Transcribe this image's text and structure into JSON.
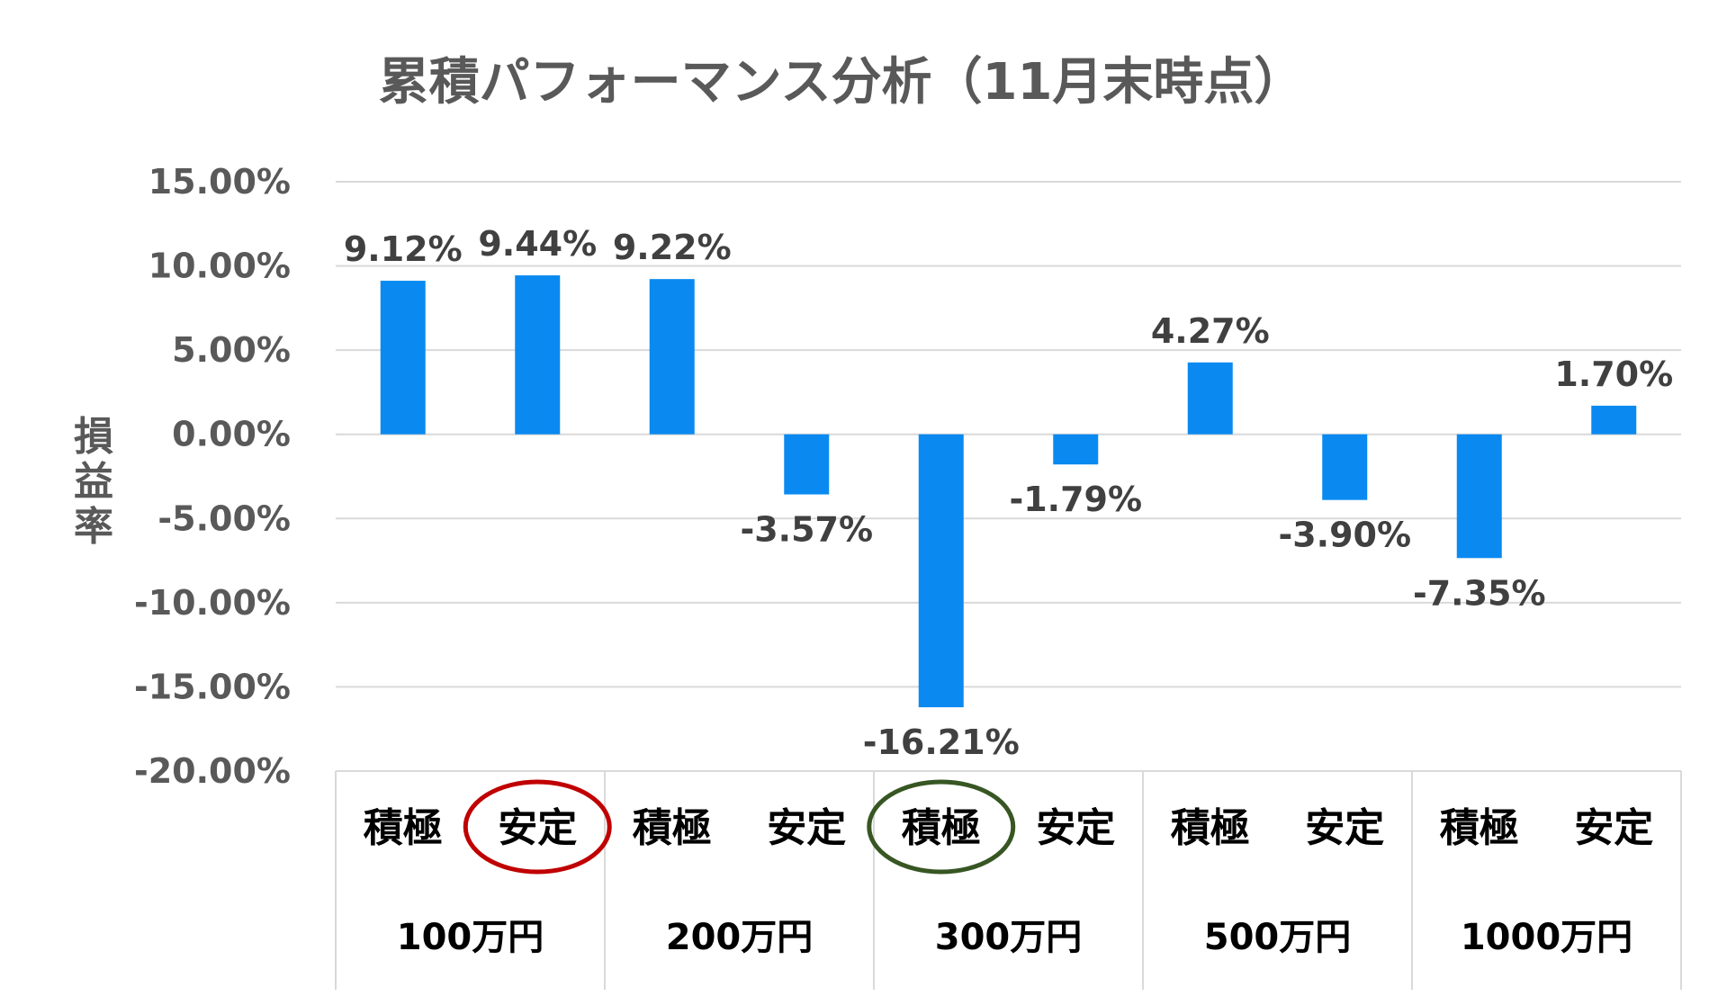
{
  "chart_data": {
    "type": "bar",
    "title": "累積パフォーマンス分析（11月末時点）",
    "ylabel": "損益率",
    "xlabel": "",
    "ylim": [
      -20,
      15
    ],
    "yticks": [
      15,
      10,
      5,
      0,
      -5,
      -10,
      -15,
      -20
    ],
    "ytick_labels": [
      "15.00%",
      "10.00%",
      "5.00%",
      "0.00%",
      "-5.00%",
      "-10.00%",
      "-15.00%",
      "-20.00%"
    ],
    "grid": true,
    "categories": [
      "積極",
      "安定",
      "積極",
      "安定",
      "積極",
      "安定",
      "積極",
      "安定",
      "積極",
      "安定"
    ],
    "groups": [
      "100万円",
      "200万円",
      "300万円",
      "500万円",
      "1000万円"
    ],
    "values": [
      9.12,
      9.44,
      9.22,
      -3.57,
      -16.21,
      -1.79,
      4.27,
      -3.9,
      -7.35,
      1.7
    ],
    "data_labels": [
      "9.12%",
      "9.44%",
      "9.22%",
      "-3.57%",
      "-16.21%",
      "-1.79%",
      "4.27%",
      "-3.90%",
      "-7.35%",
      "1.70%"
    ],
    "bar_color": "#0A8AF0",
    "highlights": [
      {
        "category_index": 1,
        "color": "#C00000"
      },
      {
        "category_index": 4,
        "color": "#375623"
      }
    ]
  }
}
